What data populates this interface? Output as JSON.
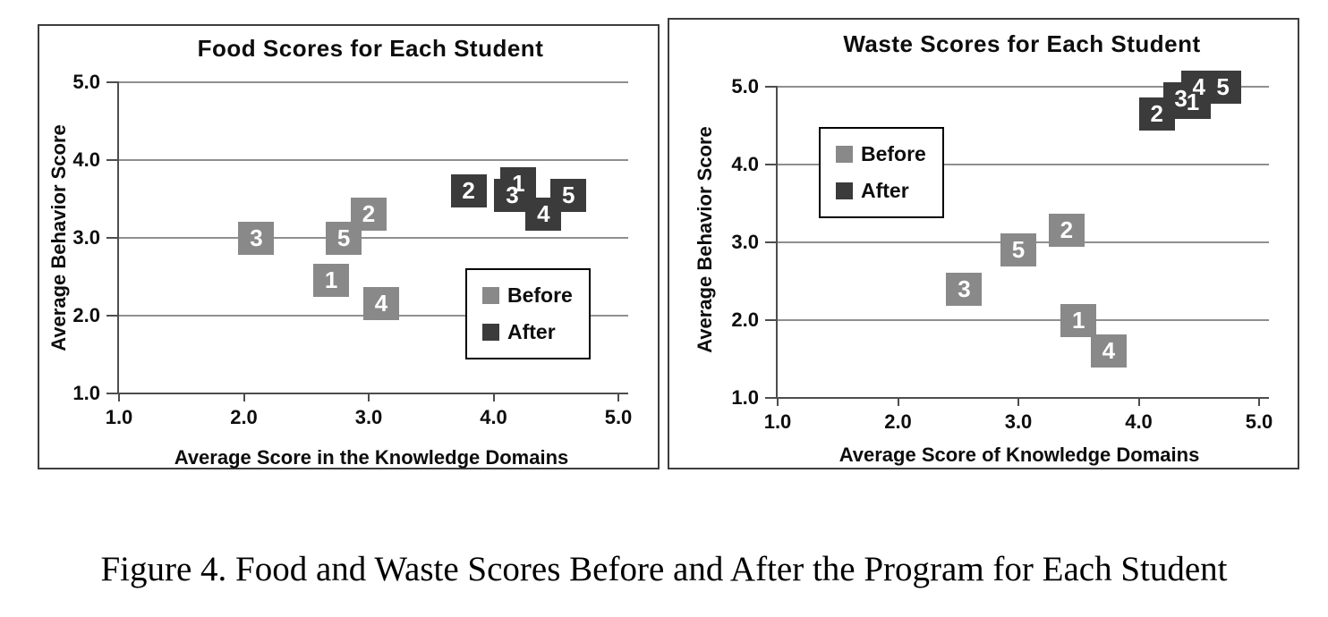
{
  "figure": {
    "caption": "Figure 4. Food and Waste Scores Before and After the Program for Each Student"
  },
  "colors": {
    "before": "#898989",
    "after": "#3b3b3b",
    "gridline": "#8f8f8f",
    "axis": "#4d4d4d",
    "panel_border": "#3d3d3d",
    "marker_text": "#ffffff"
  },
  "chart_data": [
    {
      "type": "scatter",
      "title": "Food Scores for Each Student",
      "xlabel": "Average Score in the Knowledge Domains",
      "ylabel": "Average Behavior Score",
      "xlim": [
        1.0,
        5.0
      ],
      "ylim": [
        1.0,
        5.0
      ],
      "xticks": [
        "1.0",
        "2.0",
        "3.0",
        "4.0",
        "5.0"
      ],
      "yticks": [
        "1.0",
        "2.0",
        "3.0",
        "4.0",
        "5.0"
      ],
      "grid": "horizontal-only",
      "legend": [
        "Before",
        "After"
      ],
      "legend_position": "lower-right",
      "marker": "labeled-square",
      "series": [
        {
          "name": "Before",
          "points": [
            {
              "label": "1",
              "x": 2.7,
              "y": 2.45
            },
            {
              "label": "2",
              "x": 3.0,
              "y": 3.3
            },
            {
              "label": "3",
              "x": 2.1,
              "y": 3.0
            },
            {
              "label": "4",
              "x": 3.1,
              "y": 2.15
            },
            {
              "label": "5",
              "x": 2.8,
              "y": 3.0
            }
          ]
        },
        {
          "name": "After",
          "points": [
            {
              "label": "1",
              "x": 4.2,
              "y": 3.7
            },
            {
              "label": "2",
              "x": 3.8,
              "y": 3.6
            },
            {
              "label": "3",
              "x": 4.15,
              "y": 3.55
            },
            {
              "label": "4",
              "x": 4.4,
              "y": 3.3
            },
            {
              "label": "5",
              "x": 4.6,
              "y": 3.55
            }
          ]
        }
      ]
    },
    {
      "type": "scatter",
      "title": "Waste Scores for Each Student",
      "xlabel": "Average Score of Knowledge Domains",
      "ylabel": "Average Behavior Score",
      "xlim": [
        1.0,
        5.0
      ],
      "ylim": [
        1.0,
        5.0
      ],
      "xticks": [
        "1.0",
        "2.0",
        "3.0",
        "4.0",
        "5.0"
      ],
      "yticks": [
        "1.0",
        "2.0",
        "3.0",
        "4.0",
        "5.0"
      ],
      "grid": "horizontal-only",
      "legend": [
        "Before",
        "After"
      ],
      "legend_position": "upper-left",
      "marker": "labeled-square",
      "series": [
        {
          "name": "Before",
          "points": [
            {
              "label": "1",
              "x": 3.5,
              "y": 2.0
            },
            {
              "label": "2",
              "x": 3.4,
              "y": 3.15
            },
            {
              "label": "3",
              "x": 2.55,
              "y": 2.4
            },
            {
              "label": "4",
              "x": 3.75,
              "y": 1.6
            },
            {
              "label": "5",
              "x": 3.0,
              "y": 2.9
            }
          ]
        },
        {
          "name": "After",
          "points": [
            {
              "label": "1",
              "x": 4.45,
              "y": 4.8
            },
            {
              "label": "2",
              "x": 4.15,
              "y": 4.65
            },
            {
              "label": "3",
              "x": 4.35,
              "y": 4.85
            },
            {
              "label": "4",
              "x": 4.5,
              "y": 5.0
            },
            {
              "label": "5",
              "x": 4.7,
              "y": 5.0
            }
          ]
        }
      ]
    }
  ]
}
